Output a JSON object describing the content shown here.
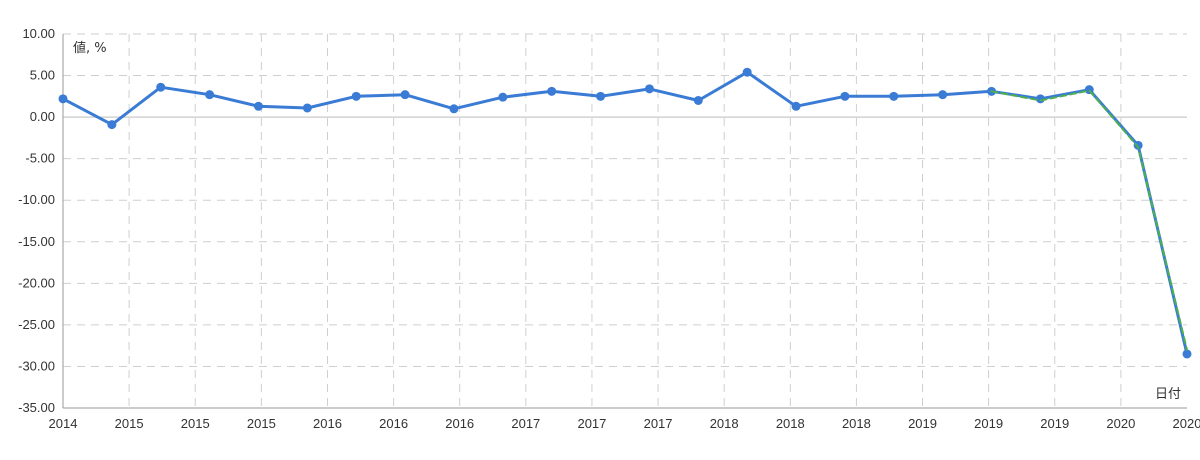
{
  "chart_data": {
    "type": "line",
    "ylabel": "値, %",
    "xlabel": "日付",
    "ylim": [
      -35,
      10
    ],
    "y_ticks": [
      "10.00",
      "5.00",
      "0.00",
      "-5.00",
      "-10.00",
      "-15.00",
      "-20.00",
      "-25.00",
      "-30.00",
      "-35.00"
    ],
    "x_ticks": [
      "2014",
      "2015",
      "2015",
      "2015",
      "2016",
      "2016",
      "2016",
      "2017",
      "2017",
      "2017",
      "2018",
      "2018",
      "2018",
      "2019",
      "2019",
      "2019",
      "2020",
      "2020"
    ],
    "grid": true,
    "series": [
      {
        "color": "#3a7bd5",
        "style": "solid",
        "markers": true,
        "values": [
          2.2,
          -0.9,
          3.6,
          2.7,
          1.3,
          1.1,
          2.5,
          2.7,
          1.0,
          2.4,
          3.1,
          2.5,
          3.4,
          2.0,
          5.4,
          1.3,
          2.5,
          2.5,
          2.7,
          3.1,
          2.2,
          3.3,
          -3.4,
          -28.5
        ]
      },
      {
        "color": "#4caf50",
        "style": "dashed",
        "markers": false,
        "values": [
          null,
          null,
          null,
          null,
          null,
          null,
          null,
          null,
          null,
          null,
          null,
          null,
          null,
          null,
          null,
          null,
          null,
          null,
          null,
          3.1,
          2.0,
          3.2,
          -3.6,
          -28.0
        ]
      }
    ]
  }
}
